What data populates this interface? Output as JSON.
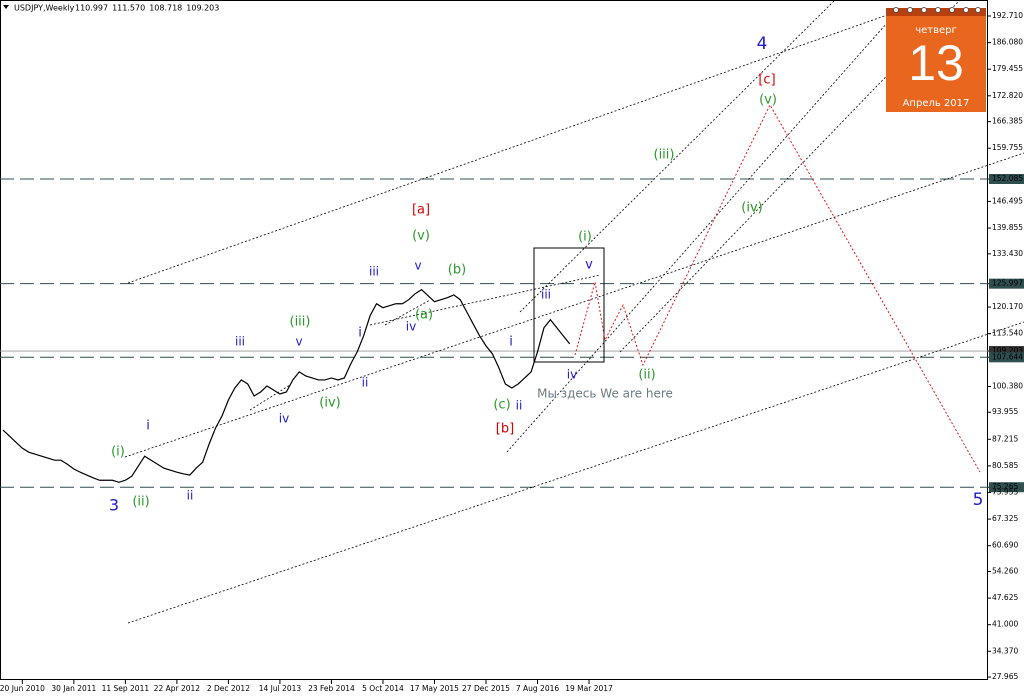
{
  "chart_data": {
    "type": "line",
    "title": "USDJPY,Weekly",
    "ohlc": [
      "110.997",
      "111.570",
      "108.718",
      "109.203"
    ],
    "categories": [
      null,
      null,
      null,
      "20 Jun 2010",
      null,
      null,
      null,
      null,
      null,
      null,
      null,
      "30 Jan 2011",
      null,
      null,
      null,
      null,
      null,
      null,
      null,
      "11 Sep 2011",
      null,
      null,
      null,
      null,
      null,
      null,
      null,
      "22 Apr 2012",
      null,
      null,
      null,
      null,
      null,
      null,
      null,
      "2 Dec 2012",
      null,
      null,
      null,
      null,
      null,
      null,
      null,
      "14 Jul 2013",
      null,
      null,
      null,
      null,
      null,
      null,
      null,
      "23 Feb 2014",
      null,
      null,
      null,
      null,
      null,
      null,
      null,
      "5 Oct 2014",
      null,
      null,
      null,
      null,
      null,
      null,
      null,
      "17 May 2015",
      null,
      null,
      null,
      null,
      null,
      null,
      null,
      "27 Dec 2015",
      null,
      null,
      null,
      null,
      null,
      null,
      null,
      "7 Aug 2016",
      null,
      null,
      null,
      null,
      null,
      null,
      null,
      "19 Mar 2017"
    ],
    "series": [
      {
        "name": "USDJPY",
        "color": "#000000",
        "values": [
          89.5,
          88,
          86.5,
          85,
          84,
          83.5,
          83,
          82.5,
          82,
          82,
          81,
          79.8,
          79,
          78.3,
          77.6,
          77,
          77,
          77,
          76.5,
          77,
          78,
          80.5,
          83,
          82,
          81,
          80,
          79.5,
          79,
          78.6,
          78.3,
          80,
          81.5,
          86,
          90,
          93,
          97,
          100,
          102,
          101,
          98,
          99,
          100.5,
          99.5,
          98.5,
          99,
          102,
          104,
          103,
          102.5,
          102,
          102,
          102.5,
          102,
          102.5,
          106,
          109,
          113,
          118,
          121,
          120,
          120.5,
          121,
          121,
          122,
          123.5,
          124.5,
          123,
          121.5,
          122,
          122.5,
          123.2,
          122,
          119,
          116,
          113,
          110.5,
          108.5,
          105,
          101,
          100,
          101,
          102.5,
          104,
          109,
          115,
          117,
          115,
          113,
          111,
          null,
          null,
          null
        ]
      }
    ],
    "ylim": [
      27.965,
      192.71
    ],
    "yticks": [
      {
        "value": 192.71,
        "label": "192.710"
      },
      {
        "value": 186.08,
        "label": "186.080"
      },
      {
        "value": 179.455,
        "label": "179.455"
      },
      {
        "value": 172.82,
        "label": "172.820"
      },
      {
        "value": 166.385,
        "label": "166.385"
      },
      {
        "value": 159.755,
        "label": "159.755"
      },
      {
        "value": 152.085,
        "label": "152.085"
      },
      {
        "value": 146.495,
        "label": "146.495"
      },
      {
        "value": 139.855,
        "label": "139.855"
      },
      {
        "value": 133.43,
        "label": "133.430"
      },
      {
        "value": 125.997,
        "label": "125.997"
      },
      {
        "value": 120.17,
        "label": "120.170"
      },
      {
        "value": 113.54,
        "label": "113.540"
      },
      {
        "value": 109.203,
        "label": "109.203"
      },
      {
        "value": 107.644,
        "label": "107.644"
      },
      {
        "value": 100.38,
        "label": "100.380"
      },
      {
        "value": 93.955,
        "label": "93.955"
      },
      {
        "value": 87.215,
        "label": "87.215"
      },
      {
        "value": 80.585,
        "label": "80.585"
      },
      {
        "value": 75.265,
        "label": "75.265"
      },
      {
        "value": 73.955,
        "label": "73.955"
      },
      {
        "value": 67.325,
        "label": "67.325"
      },
      {
        "value": 60.69,
        "label": "60.690"
      },
      {
        "value": 54.26,
        "label": "54.260"
      },
      {
        "value": 47.625,
        "label": "47.625"
      },
      {
        "value": 41,
        "label": "41.000"
      },
      {
        "value": 34.37,
        "label": "34.370"
      },
      {
        "value": 27.965,
        "label": "27.965"
      }
    ],
    "levels": [
      152.085,
      125.997,
      107.644,
      75.265
    ],
    "price_line": 109.203,
    "annotations": [
      {
        "text": "4",
        "color": "#1c1ccc"
      },
      {
        "text": "[c]",
        "color": "#e00000"
      },
      {
        "text": "(v)",
        "color": "#2a9a2a"
      },
      {
        "text": "(iii)",
        "color": "#2a9a2a"
      },
      {
        "text": "(iv)",
        "color": "#2a9a2a"
      },
      {
        "text": "[a]",
        "color": "#e00000"
      },
      {
        "text": "(v)",
        "color": "#2a9a2a"
      },
      {
        "text": "(b)",
        "color": "#2a9a2a"
      },
      {
        "text": "(i)",
        "color": "#2a9a2a"
      },
      {
        "text": "v",
        "color": "#1c1ccc"
      },
      {
        "text": "iii",
        "color": "#1c1ccc"
      },
      {
        "text": "iii",
        "color": "#1c1ccc"
      },
      {
        "text": "v",
        "color": "#1c1ccc"
      },
      {
        "text": "i",
        "color": "#1c1ccc"
      },
      {
        "text": "(a)",
        "color": "#2a9a2a"
      },
      {
        "text": "iv",
        "color": "#1c1ccc"
      },
      {
        "text": "(iii)",
        "color": "#2a9a2a"
      },
      {
        "text": "v",
        "color": "#1c1ccc"
      },
      {
        "text": "iii",
        "color": "#1c1ccc"
      },
      {
        "text": "(iv)",
        "color": "#2a9a2a"
      },
      {
        "text": "ii",
        "color": "#1c1ccc"
      },
      {
        "text": "iv",
        "color": "#1c1ccc"
      },
      {
        "text": "i",
        "color": "#1c1ccc"
      },
      {
        "text": "(i)",
        "color": "#2a9a2a"
      },
      {
        "text": "3",
        "color": "#1c1ccc"
      },
      {
        "text": "(ii)",
        "color": "#2a9a2a"
      },
      {
        "text": "ii",
        "color": "#1c1ccc"
      },
      {
        "text": "i",
        "color": "#1c1ccc"
      },
      {
        "text": "(c)",
        "color": "#2a9a2a"
      },
      {
        "text": "ii",
        "color": "#1c1ccc"
      },
      {
        "text": "[b]",
        "color": "#e00000"
      },
      {
        "text": "iv",
        "color": "#1c1ccc"
      },
      {
        "text": "(ii)",
        "color": "#2a9a2a"
      },
      {
        "text": "Мы здесь We are here",
        "color": "#6a7a80"
      },
      {
        "text": "5",
        "color": "#1c1ccc"
      }
    ],
    "calendar": {
      "weekday": "четверг",
      "day": "13",
      "month": "Апрель 2017"
    }
  }
}
